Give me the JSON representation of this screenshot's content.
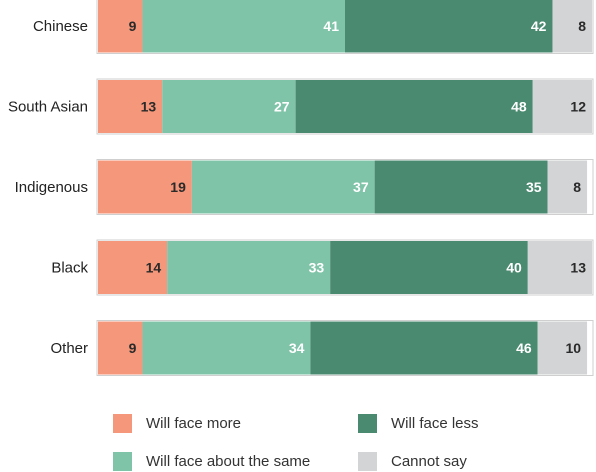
{
  "chart_data": {
    "type": "bar",
    "orientation": "horizontal",
    "stacked": true,
    "categories": [
      "Chinese",
      "South Asian",
      "Indigenous",
      "Black",
      "Other"
    ],
    "series": [
      {
        "name": "Will face more",
        "values": [
          9,
          13,
          19,
          14,
          9
        ],
        "color": "#f4977a",
        "label_color": "#2a2a2a"
      },
      {
        "name": "Will face about the same",
        "values": [
          41,
          27,
          37,
          33,
          34
        ],
        "color": "#7fc4a9",
        "label_color": "#ffffff"
      },
      {
        "name": "Will face less",
        "values": [
          42,
          48,
          35,
          40,
          46
        ],
        "color": "#4a8a70",
        "label_color": "#ffffff"
      },
      {
        "name": "Cannot say",
        "values": [
          8,
          12,
          8,
          13,
          10
        ],
        "color": "#d3d4d6",
        "label_color": "#2a2a2a"
      }
    ],
    "xlim": [
      0,
      100
    ],
    "grid": false,
    "legend_position": "bottom"
  },
  "legend": {
    "items": [
      {
        "label": "Will face more",
        "color": "#f4977a"
      },
      {
        "label": "Will face less",
        "color": "#4a8a70"
      },
      {
        "label": "Will face about the same",
        "color": "#7fc4a9"
      },
      {
        "label": "Cannot say",
        "color": "#d3d4d6"
      }
    ]
  }
}
